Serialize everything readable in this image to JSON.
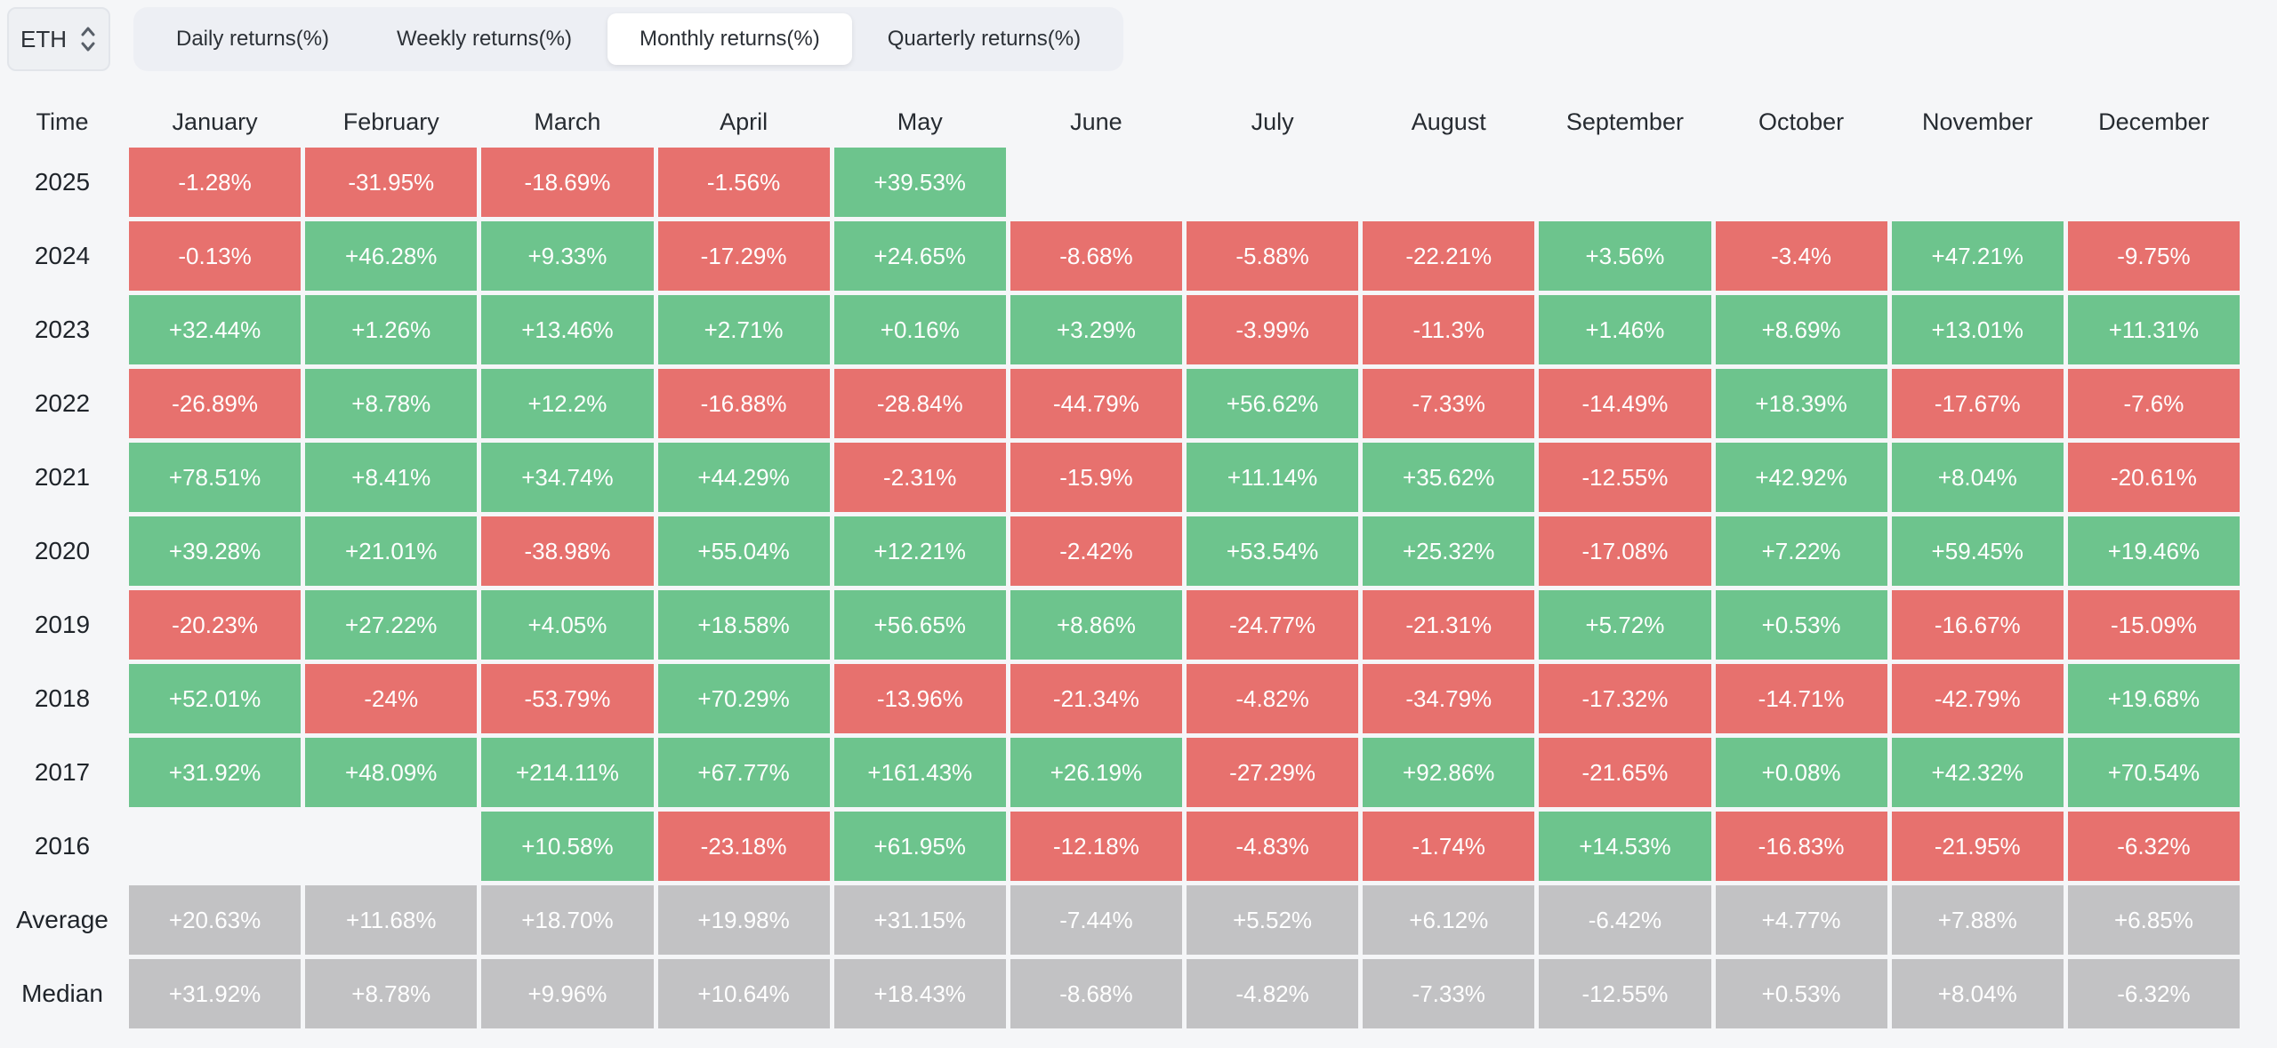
{
  "toolbar": {
    "symbol": "ETH",
    "symbol_icon": "updown-chevron-icon",
    "tabs": [
      {
        "label": "Daily returns(%)",
        "active": false
      },
      {
        "label": "Weekly returns(%)",
        "active": false
      },
      {
        "label": "Monthly returns(%)",
        "active": true
      },
      {
        "label": "Quarterly returns(%)",
        "active": false
      }
    ]
  },
  "colors": {
    "positive": "#6DC48D",
    "negative": "#E7716E",
    "summary": "#C2C2C4",
    "cell_text": "#FFFFFF",
    "page_text": "#262B31"
  },
  "table": {
    "header": [
      "Time",
      "January",
      "February",
      "March",
      "April",
      "May",
      "June",
      "July",
      "August",
      "September",
      "October",
      "November",
      "December"
    ],
    "rows": [
      {
        "label": "2025",
        "type": "year",
        "values": [
          "-1.28%",
          "-31.95%",
          "-18.69%",
          "-1.56%",
          "+39.53%",
          null,
          null,
          null,
          null,
          null,
          null,
          null
        ]
      },
      {
        "label": "2024",
        "type": "year",
        "values": [
          "-0.13%",
          "+46.28%",
          "+9.33%",
          "-17.29%",
          "+24.65%",
          "-8.68%",
          "-5.88%",
          "-22.21%",
          "+3.56%",
          "-3.4%",
          "+47.21%",
          "-9.75%"
        ]
      },
      {
        "label": "2023",
        "type": "year",
        "values": [
          "+32.44%",
          "+1.26%",
          "+13.46%",
          "+2.71%",
          "+0.16%",
          "+3.29%",
          "-3.99%",
          "-11.3%",
          "+1.46%",
          "+8.69%",
          "+13.01%",
          "+11.31%"
        ]
      },
      {
        "label": "2022",
        "type": "year",
        "values": [
          "-26.89%",
          "+8.78%",
          "+12.2%",
          "-16.88%",
          "-28.84%",
          "-44.79%",
          "+56.62%",
          "-7.33%",
          "-14.49%",
          "+18.39%",
          "-17.67%",
          "-7.6%"
        ]
      },
      {
        "label": "2021",
        "type": "year",
        "values": [
          "+78.51%",
          "+8.41%",
          "+34.74%",
          "+44.29%",
          "-2.31%",
          "-15.9%",
          "+11.14%",
          "+35.62%",
          "-12.55%",
          "+42.92%",
          "+8.04%",
          "-20.61%"
        ]
      },
      {
        "label": "2020",
        "type": "year",
        "values": [
          "+39.28%",
          "+21.01%",
          "-38.98%",
          "+55.04%",
          "+12.21%",
          "-2.42%",
          "+53.54%",
          "+25.32%",
          "-17.08%",
          "+7.22%",
          "+59.45%",
          "+19.46%"
        ]
      },
      {
        "label": "2019",
        "type": "year",
        "values": [
          "-20.23%",
          "+27.22%",
          "+4.05%",
          "+18.58%",
          "+56.65%",
          "+8.86%",
          "-24.77%",
          "-21.31%",
          "+5.72%",
          "+0.53%",
          "-16.67%",
          "-15.09%"
        ]
      },
      {
        "label": "2018",
        "type": "year",
        "values": [
          "+52.01%",
          "-24%",
          "-53.79%",
          "+70.29%",
          "-13.96%",
          "-21.34%",
          "-4.82%",
          "-34.79%",
          "-17.32%",
          "-14.71%",
          "-42.79%",
          "+19.68%"
        ]
      },
      {
        "label": "2017",
        "type": "year",
        "values": [
          "+31.92%",
          "+48.09%",
          "+214.11%",
          "+67.77%",
          "+161.43%",
          "+26.19%",
          "-27.29%",
          "+92.86%",
          "-21.65%",
          "+0.08%",
          "+42.32%",
          "+70.54%"
        ]
      },
      {
        "label": "2016",
        "type": "year",
        "values": [
          null,
          null,
          "+10.58%",
          "-23.18%",
          "+61.95%",
          "-12.18%",
          "-4.83%",
          "-1.74%",
          "+14.53%",
          "-16.83%",
          "-21.95%",
          "-6.32%"
        ]
      },
      {
        "label": "Average",
        "type": "summary",
        "values": [
          "+20.63%",
          "+11.68%",
          "+18.70%",
          "+19.98%",
          "+31.15%",
          "-7.44%",
          "+5.52%",
          "+6.12%",
          "-6.42%",
          "+4.77%",
          "+7.88%",
          "+6.85%"
        ]
      },
      {
        "label": "Median",
        "type": "summary",
        "values": [
          "+31.92%",
          "+8.78%",
          "+9.96%",
          "+10.64%",
          "+18.43%",
          "-8.68%",
          "-4.82%",
          "-7.33%",
          "-12.55%",
          "+0.53%",
          "+8.04%",
          "-6.32%"
        ]
      }
    ]
  }
}
